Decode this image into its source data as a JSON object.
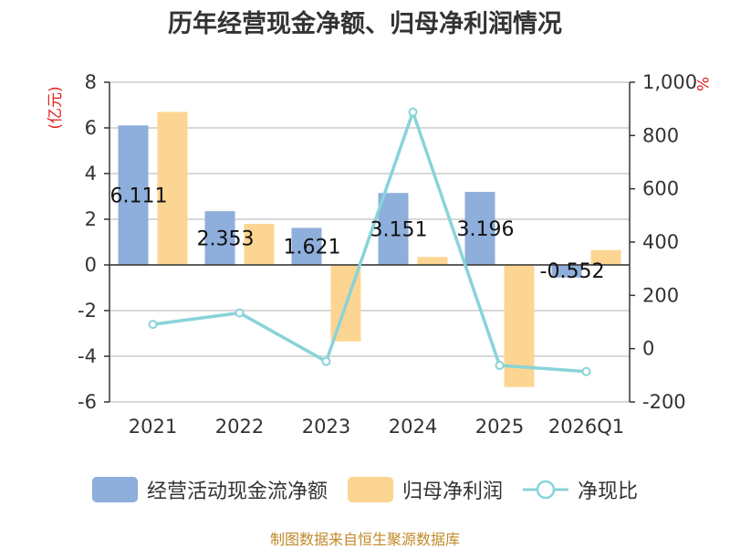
{
  "chart_data": {
    "type": "bar",
    "title": "历年经营现金净额、归母净利润情况",
    "categories": [
      "2021",
      "2022",
      "2023",
      "2024",
      "2025",
      "2026Q1"
    ],
    "left_axis": {
      "unit_label": "(亿元)",
      "ylim": [
        -6,
        8
      ],
      "ticks": [
        8,
        6,
        4,
        2,
        0,
        -2,
        -4,
        -6
      ]
    },
    "right_axis": {
      "unit_label": "%",
      "ylim": [
        -200,
        1000
      ],
      "ticks": [
        "1,000",
        "800",
        "600",
        "400",
        "200",
        "0",
        "-200"
      ],
      "tick_values": [
        1000,
        800,
        600,
        400,
        200,
        0,
        -200
      ]
    },
    "series": [
      {
        "name": "经营活动现金流净额",
        "type": "bar",
        "axis": "left",
        "color": "#8eaedb",
        "values": [
          6.111,
          2.353,
          1.621,
          3.151,
          3.196,
          -0.552
        ],
        "labels": [
          "6.111",
          "2.353",
          "1.621",
          "3.151",
          "3.196",
          "-0.552"
        ]
      },
      {
        "name": "归母净利润",
        "type": "bar",
        "axis": "left",
        "color": "#fdd592",
        "values": [
          6.7,
          1.8,
          -3.35,
          0.35,
          -5.35,
          0.65
        ]
      },
      {
        "name": "净现比",
        "type": "line",
        "axis": "right",
        "color": "#88d4d8",
        "values": [
          91,
          134,
          -48,
          888,
          -63,
          -86
        ]
      }
    ]
  },
  "legend": {
    "items": [
      "经营活动现金流净额",
      "归母净利润",
      "净现比"
    ]
  },
  "source": "制图数据来自恒生聚源数据库"
}
